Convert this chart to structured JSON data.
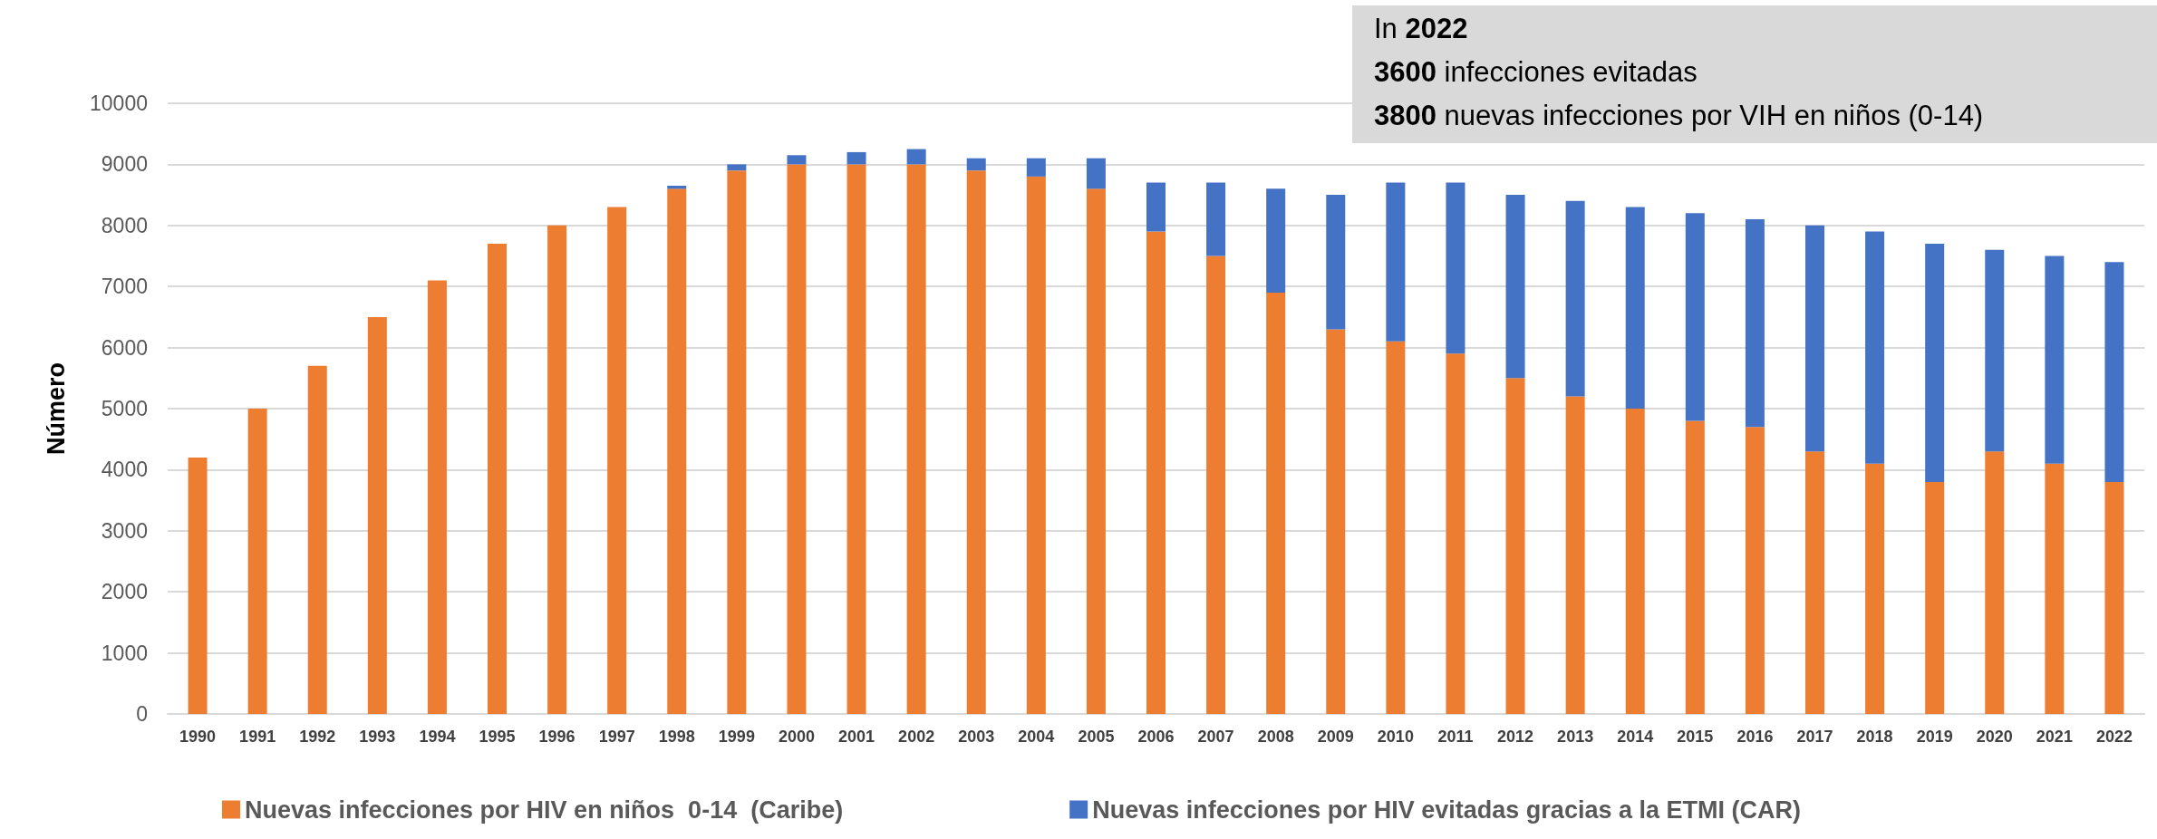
{
  "chart_data": {
    "type": "bar",
    "stacked": true,
    "ylabel": "Número",
    "categories": [
      "1990",
      "1991",
      "1992",
      "1993",
      "1994",
      "1995",
      "1996",
      "1997",
      "1998",
      "1999",
      "2000",
      "2001",
      "2002",
      "2003",
      "2004",
      "2005",
      "2006",
      "2007",
      "2008",
      "2009",
      "2010",
      "2011",
      "2012",
      "2013",
      "2014",
      "2015",
      "2016",
      "2017",
      "2018",
      "2019",
      "2020",
      "2021",
      "2022"
    ],
    "series": [
      {
        "name": "Nuevas infecciones por HIV en niños  0-14  (Caribe)",
        "color": "#ed7d31",
        "values": [
          4200,
          5000,
          5700,
          6500,
          7100,
          7700,
          8000,
          8300,
          8600,
          8900,
          9000,
          9000,
          9000,
          8900,
          8800,
          8600,
          7900,
          7500,
          6900,
          6300,
          6100,
          5900,
          5500,
          5200,
          5000,
          4800,
          4700,
          4300,
          4100,
          3800,
          4300,
          4100,
          3800
        ]
      },
      {
        "name": "Nuevas infecciones por HIV evitadas gracias a la ETMI (CAR)",
        "color": "#4472c4",
        "values": [
          null,
          null,
          null,
          null,
          null,
          null,
          null,
          null,
          50,
          100,
          150,
          200,
          250,
          200,
          300,
          500,
          800,
          1200,
          1700,
          2200,
          2600,
          2800,
          3000,
          3200,
          3300,
          3400,
          3400,
          3700,
          3800,
          3900,
          3300,
          3400,
          3600
        ]
      }
    ],
    "ylim": [
      0,
      10000
    ],
    "yticks": [
      0,
      1000,
      2000,
      3000,
      4000,
      5000,
      6000,
      7000,
      8000,
      9000,
      10000
    ],
    "grid": "y",
    "legend": "bottom",
    "annotations": [
      "In 2022",
      "3600 infecciones evitadas",
      "3800 nuevas infecciones por VIH en niños (0-14)"
    ]
  }
}
